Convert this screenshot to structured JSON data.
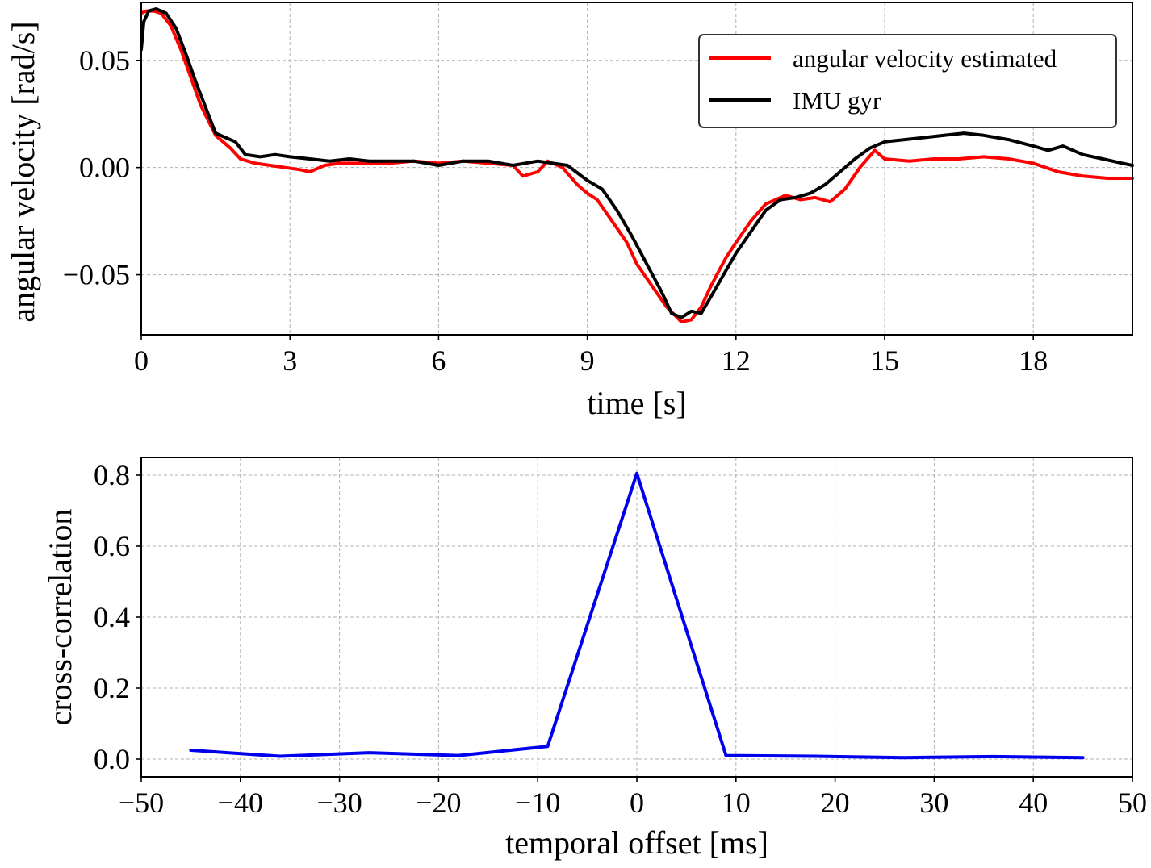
{
  "chart_data": [
    {
      "type": "line",
      "xlabel": "time [s]",
      "ylabel": "angular velocity [rad/s]",
      "xlim": [
        0,
        20
      ],
      "ylim": [
        -0.078,
        0.077
      ],
      "xticks": [
        0,
        3,
        6,
        9,
        12,
        15,
        18
      ],
      "xtick_labels": [
        "0",
        "3",
        "6",
        "9",
        "12",
        "15",
        "18"
      ],
      "yticks": [
        -0.05,
        0.0,
        0.05
      ],
      "ytick_labels": [
        "−0.05",
        "0.00",
        "0.05"
      ],
      "grid": true,
      "legend_position": "top-right",
      "series": [
        {
          "name": "angular velocity estimated",
          "color": "#ff0000",
          "x": [
            0,
            0.1,
            0.25,
            0.4,
            0.6,
            0.8,
            1.0,
            1.2,
            1.5,
            1.8,
            2.0,
            2.3,
            2.6,
            2.9,
            3.2,
            3.4,
            3.7,
            4.0,
            4.5,
            5.0,
            5.5,
            6.0,
            6.5,
            7.0,
            7.5,
            7.7,
            8.0,
            8.2,
            8.5,
            8.8,
            9.0,
            9.2,
            9.5,
            9.8,
            10.0,
            10.3,
            10.6,
            10.9,
            11.1,
            11.3,
            11.5,
            11.8,
            12.0,
            12.3,
            12.6,
            13.0,
            13.3,
            13.6,
            13.9,
            14.2,
            14.5,
            14.8,
            15.0,
            15.5,
            16.0,
            16.5,
            17.0,
            17.5,
            18.0,
            18.5,
            19.0,
            19.5,
            20.0
          ],
          "y": [
            0.072,
            0.073,
            0.073,
            0.072,
            0.066,
            0.055,
            0.042,
            0.029,
            0.015,
            0.009,
            0.004,
            0.002,
            0.001,
            0.0,
            -0.001,
            -0.002,
            0.001,
            0.002,
            0.002,
            0.002,
            0.003,
            0.002,
            0.003,
            0.002,
            0.001,
            -0.004,
            -0.002,
            0.003,
            0.0,
            -0.008,
            -0.012,
            -0.015,
            -0.025,
            -0.035,
            -0.045,
            -0.055,
            -0.065,
            -0.072,
            -0.071,
            -0.065,
            -0.055,
            -0.042,
            -0.035,
            -0.025,
            -0.017,
            -0.013,
            -0.015,
            -0.014,
            -0.016,
            -0.01,
            0.0,
            0.008,
            0.004,
            0.003,
            0.004,
            0.004,
            0.005,
            0.004,
            0.002,
            -0.002,
            -0.004,
            -0.005,
            -0.005
          ]
        },
        {
          "name": "IMU gyr",
          "color": "#000000",
          "x": [
            0,
            0.05,
            0.15,
            0.3,
            0.5,
            0.7,
            0.9,
            1.1,
            1.3,
            1.5,
            1.7,
            1.9,
            2.1,
            2.4,
            2.7,
            3.0,
            3.4,
            3.8,
            4.2,
            4.6,
            5.0,
            5.5,
            6.0,
            6.5,
            7.0,
            7.5,
            8.0,
            8.3,
            8.6,
            9.0,
            9.3,
            9.6,
            9.9,
            10.2,
            10.5,
            10.7,
            10.9,
            11.1,
            11.3,
            11.5,
            11.8,
            12.0,
            12.3,
            12.6,
            12.9,
            13.2,
            13.5,
            13.8,
            14.1,
            14.4,
            14.7,
            15.0,
            15.4,
            15.8,
            16.2,
            16.6,
            17.0,
            17.5,
            18.0,
            18.3,
            18.6,
            19.0,
            19.4,
            19.8,
            20.0
          ],
          "y": [
            0.055,
            0.068,
            0.073,
            0.074,
            0.072,
            0.065,
            0.053,
            0.04,
            0.028,
            0.016,
            0.014,
            0.012,
            0.006,
            0.005,
            0.006,
            0.005,
            0.004,
            0.003,
            0.004,
            0.003,
            0.003,
            0.003,
            0.001,
            0.003,
            0.003,
            0.001,
            0.003,
            0.002,
            0.001,
            -0.006,
            -0.01,
            -0.02,
            -0.032,
            -0.045,
            -0.058,
            -0.068,
            -0.07,
            -0.067,
            -0.068,
            -0.06,
            -0.048,
            -0.04,
            -0.03,
            -0.02,
            -0.015,
            -0.014,
            -0.012,
            -0.008,
            -0.002,
            0.004,
            0.009,
            0.012,
            0.013,
            0.014,
            0.015,
            0.016,
            0.015,
            0.013,
            0.01,
            0.008,
            0.01,
            0.006,
            0.004,
            0.002,
            0.001
          ]
        }
      ]
    },
    {
      "type": "line",
      "xlabel": "temporal offset [ms]",
      "ylabel": "cross-correlation",
      "xlim": [
        -50,
        50
      ],
      "ylim": [
        -0.05,
        0.85
      ],
      "xticks": [
        -50,
        -40,
        -30,
        -20,
        -10,
        0,
        10,
        20,
        30,
        40,
        50
      ],
      "xtick_labels": [
        "−50",
        "−40",
        "−30",
        "−20",
        "−10",
        "0",
        "10",
        "20",
        "30",
        "40",
        "50"
      ],
      "yticks": [
        0.0,
        0.2,
        0.4,
        0.6,
        0.8
      ],
      "ytick_labels": [
        "0.0",
        "0.2",
        "0.4",
        "0.6",
        "0.8"
      ],
      "grid": true,
      "series": [
        {
          "name": "cross-correlation",
          "color": "#0000ee",
          "x": [
            -45,
            -36,
            -27,
            -18,
            -9,
            0,
            9,
            18,
            27,
            36,
            45
          ],
          "y": [
            0.025,
            0.008,
            0.018,
            0.01,
            0.036,
            0.805,
            0.01,
            0.008,
            0.004,
            0.007,
            0.004
          ]
        }
      ]
    }
  ]
}
